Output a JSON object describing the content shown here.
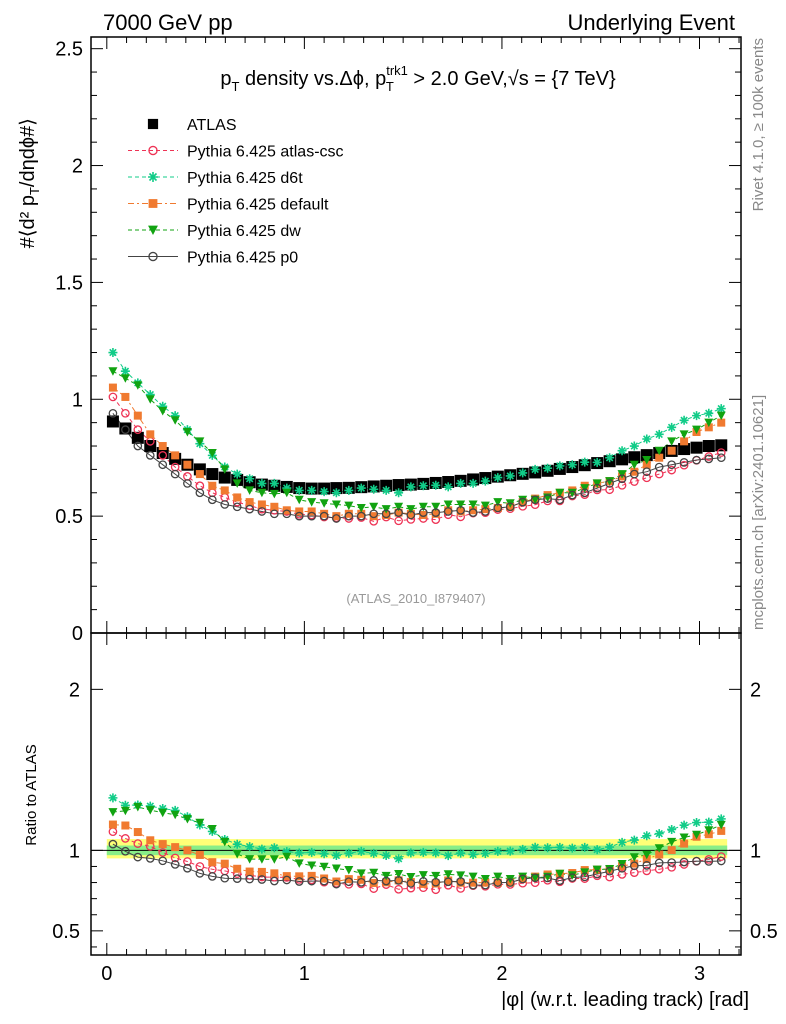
{
  "header": {
    "left": "7000 GeV pp",
    "right": "Underlying Event"
  },
  "side_labels": {
    "rivet": "Rivet 4.1.0, ≥ 100k events",
    "mcplots": "mcplots.cern.ch [arXiv:2401.10621]"
  },
  "analysis_label": "(ATLAS_2010_I879407)",
  "colors": {
    "ATLAS": "#000000",
    "atlas_csc": "#ee3355",
    "d6t": "#11cc88",
    "default": "#f07a30",
    "dw": "#11a311",
    "p0": "#444444",
    "band_yellow": "#ffff77",
    "band_green": "#88ee88"
  },
  "chart_data": [
    {
      "type": "scatter",
      "title": "p_T density vs.Δφ, p_T^trk1 > 2.0 GeV,√s = {7 TeV}",
      "ylabel": "#⟨d² p_T/dηdφ#⟩",
      "xlabel": "",
      "xlim": [
        -0.08,
        3.21
      ],
      "ylim": [
        0,
        2.55
      ],
      "yticks": [
        0.5,
        1,
        1.5,
        2,
        2.5
      ],
      "ytick_labels": [
        "0.5",
        "1",
        "1.5",
        "2",
        "2.5"
      ],
      "ytick_label_zero": "0",
      "x": [
        0.031,
        0.094,
        0.157,
        0.22,
        0.283,
        0.346,
        0.408,
        0.471,
        0.534,
        0.597,
        0.66,
        0.723,
        0.785,
        0.848,
        0.911,
        0.974,
        1.037,
        1.1,
        1.162,
        1.225,
        1.288,
        1.351,
        1.414,
        1.477,
        1.539,
        1.602,
        1.665,
        1.728,
        1.791,
        1.854,
        1.916,
        1.979,
        2.042,
        2.105,
        2.168,
        2.231,
        2.293,
        2.356,
        2.419,
        2.482,
        2.545,
        2.608,
        2.67,
        2.733,
        2.796,
        2.859,
        2.922,
        2.985,
        3.047,
        3.11
      ],
      "legend": {
        "entries": [
          "ATLAS",
          "Pythia 6.425 atlas-csc",
          "Pythia 6.425 d6t",
          "Pythia 6.425 default",
          "Pythia 6.425 dw",
          "Pythia 6.425 p0"
        ],
        "placement": "top-left"
      },
      "series": [
        {
          "name": "ATLAS",
          "values": [
            0.905,
            0.875,
            0.835,
            0.8,
            0.77,
            0.745,
            0.72,
            0.7,
            0.68,
            0.665,
            0.655,
            0.645,
            0.635,
            0.63,
            0.625,
            0.62,
            0.618,
            0.618,
            0.62,
            0.621,
            0.624,
            0.627,
            0.63,
            0.633,
            0.635,
            0.638,
            0.642,
            0.646,
            0.651,
            0.657,
            0.663,
            0.669,
            0.675,
            0.681,
            0.687,
            0.694,
            0.702,
            0.71,
            0.718,
            0.727,
            0.735,
            0.743,
            0.752,
            0.761,
            0.77,
            0.779,
            0.787,
            0.793,
            0.8,
            0.803
          ]
        },
        {
          "name": "Pythia 6.425 atlas-csc",
          "values": [
            1.01,
            0.94,
            0.87,
            0.82,
            0.76,
            0.71,
            0.67,
            0.63,
            0.6,
            0.58,
            0.56,
            0.545,
            0.53,
            0.525,
            0.52,
            0.508,
            0.505,
            0.496,
            0.493,
            0.49,
            0.494,
            0.478,
            0.496,
            0.48,
            0.486,
            0.49,
            0.485,
            0.506,
            0.497,
            0.513,
            0.515,
            0.528,
            0.532,
            0.542,
            0.549,
            0.565,
            0.565,
            0.586,
            0.592,
            0.612,
            0.613,
            0.632,
            0.648,
            0.664,
            0.68,
            0.697,
            0.718,
            0.739,
            0.755,
            0.772
          ]
        },
        {
          "name": "Pythia 6.425 d6t",
          "values": [
            1.2,
            1.12,
            1.07,
            1.02,
            0.97,
            0.93,
            0.87,
            0.81,
            0.76,
            0.71,
            0.68,
            0.66,
            0.64,
            0.64,
            0.62,
            0.61,
            0.61,
            0.605,
            0.6,
            0.61,
            0.62,
            0.615,
            0.61,
            0.6,
            0.625,
            0.63,
            0.632,
            0.625,
            0.64,
            0.64,
            0.65,
            0.665,
            0.672,
            0.685,
            0.7,
            0.705,
            0.715,
            0.72,
            0.731,
            0.73,
            0.75,
            0.78,
            0.8,
            0.83,
            0.85,
            0.88,
            0.91,
            0.93,
            0.94,
            0.96
          ]
        },
        {
          "name": "Pythia 6.425 default",
          "values": [
            1.05,
            1.01,
            0.93,
            0.85,
            0.8,
            0.76,
            0.72,
            0.68,
            0.63,
            0.61,
            0.58,
            0.56,
            0.55,
            0.54,
            0.525,
            0.52,
            0.52,
            0.51,
            0.5,
            0.51,
            0.51,
            0.5,
            0.505,
            0.515,
            0.51,
            0.505,
            0.51,
            0.525,
            0.52,
            0.525,
            0.53,
            0.535,
            0.54,
            0.56,
            0.575,
            0.59,
            0.6,
            0.61,
            0.63,
            0.64,
            0.65,
            0.67,
            0.69,
            0.72,
            0.75,
            0.78,
            0.82,
            0.86,
            0.88,
            0.9
          ]
        },
        {
          "name": "Pythia 6.425 dw",
          "values": [
            1.12,
            1.09,
            1.06,
            1.0,
            0.95,
            0.91,
            0.86,
            0.82,
            0.77,
            0.7,
            0.64,
            0.61,
            0.6,
            0.595,
            0.6,
            0.57,
            0.56,
            0.555,
            0.55,
            0.545,
            0.535,
            0.54,
            0.53,
            0.54,
            0.53,
            0.54,
            0.54,
            0.55,
            0.55,
            0.55,
            0.545,
            0.56,
            0.555,
            0.57,
            0.57,
            0.58,
            0.6,
            0.6,
            0.62,
            0.64,
            0.65,
            0.68,
            0.72,
            0.74,
            0.78,
            0.82,
            0.85,
            0.87,
            0.9,
            0.93
          ]
        },
        {
          "name": "Pythia 6.425 p0",
          "values": [
            0.94,
            0.87,
            0.8,
            0.76,
            0.72,
            0.68,
            0.64,
            0.6,
            0.57,
            0.55,
            0.54,
            0.53,
            0.52,
            0.51,
            0.51,
            0.5,
            0.5,
            0.5,
            0.49,
            0.5,
            0.5,
            0.51,
            0.51,
            0.515,
            0.505,
            0.515,
            0.515,
            0.52,
            0.525,
            0.515,
            0.52,
            0.535,
            0.54,
            0.56,
            0.57,
            0.575,
            0.57,
            0.59,
            0.6,
            0.62,
            0.64,
            0.66,
            0.68,
            0.69,
            0.71,
            0.72,
            0.73,
            0.74,
            0.745,
            0.75
          ]
        }
      ]
    },
    {
      "type": "scatter",
      "title": "",
      "ylabel": "Ratio to ATLAS",
      "xlabel": "|φ| (w.r.t. leading track) [rad]",
      "xlim": [
        -0.08,
        3.21
      ],
      "ylim": [
        0.35,
        2.35
      ],
      "yticks": [
        0.5,
        1,
        2
      ],
      "ytick_labels": [
        "0.5",
        "1",
        "2"
      ],
      "xticks": [
        0,
        1,
        2,
        3
      ],
      "xtick_labels": [
        "0",
        "1",
        "2",
        "3"
      ],
      "band_outer": [
        0.95,
        1.07
      ],
      "band_inner": [
        0.97,
        1.03
      ]
    }
  ]
}
